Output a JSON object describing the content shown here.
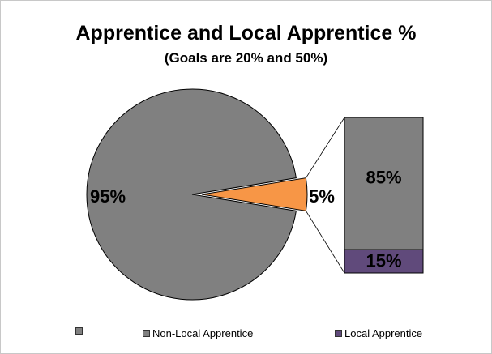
{
  "chart_data": {
    "type": "pie",
    "title": "Apprentice and Local Apprentice %",
    "subtitle": "(Goals are 20% and 50%)",
    "pie": {
      "slices": [
        {
          "name": "",
          "value": 95,
          "label": "95%",
          "color": "#808080"
        },
        {
          "name": "",
          "value": 5,
          "label": "5%",
          "color": "#f79646",
          "exploded": true
        }
      ]
    },
    "bar_of_pie": {
      "segments": [
        {
          "name": "Non-Local Apprentice",
          "value": 85,
          "label": "85%",
          "color": "#808080"
        },
        {
          "name": "Local Apprentice",
          "value": 15,
          "label": "15%",
          "color": "#604a7b"
        }
      ]
    },
    "legend": [
      {
        "label": "",
        "color": "#808080"
      },
      {
        "label": "Non-Local Apprentice",
        "color": "#808080"
      },
      {
        "label": "Local Apprentice",
        "color": "#604a7b"
      }
    ],
    "legend_position": "bottom"
  }
}
